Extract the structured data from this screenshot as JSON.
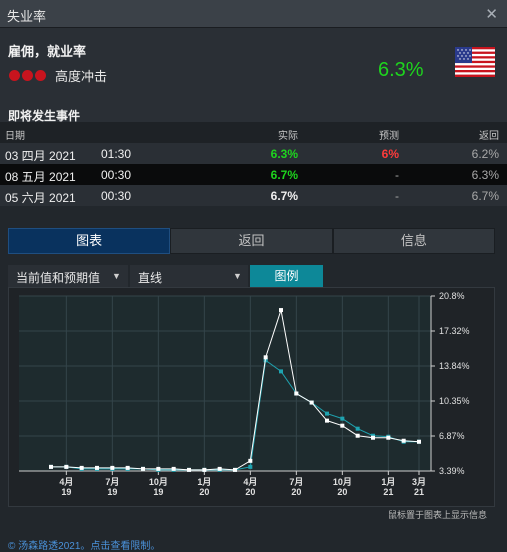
{
  "window": {
    "title": "失业率"
  },
  "indicator": {
    "name": "雇佣，就业率",
    "impact_label": "高度冲击",
    "impact_level": 3,
    "impact_color": "#c8141e",
    "current_value": "6.3%",
    "value_color": "#1ed41e",
    "flag_icon": "us-flag-icon"
  },
  "events": {
    "title": "即将发生事件",
    "headers": {
      "date": "日期",
      "actual": "实际",
      "forecast": "预测",
      "previous": "返回"
    },
    "rows": [
      {
        "date": "03 四月 2021",
        "time": "01:30",
        "actual": "6.3%",
        "forecast": "6%",
        "previous": "6.2%"
      },
      {
        "date": "08 五月 2021",
        "time": "00:30",
        "actual": "6.7%",
        "forecast": "-",
        "previous": "6.3%"
      },
      {
        "date": "05 六月 2021",
        "time": "00:30",
        "actual": "6.7%",
        "forecast": "-",
        "previous": "6.7%"
      }
    ]
  },
  "tabs": [
    {
      "label": "图表",
      "active": true
    },
    {
      "label": "返回",
      "active": false
    },
    {
      "label": "信息",
      "active": false
    }
  ],
  "controls": {
    "series_select": "当前值和预期值",
    "chart_type_select": "直线",
    "legend_button": "图例"
  },
  "chart_data": {
    "type": "line",
    "ylim": [
      3.39,
      20.8
    ],
    "y_ticks": [
      "20.8%",
      "17.32%",
      "13.84%",
      "10.35%",
      "6.87%",
      "3.39%"
    ],
    "x_ticks": [
      {
        "month": "4月",
        "year": "19"
      },
      {
        "month": "7月",
        "year": "19"
      },
      {
        "month": "10月",
        "year": "19"
      },
      {
        "month": "1月",
        "year": "20"
      },
      {
        "month": "4月",
        "year": "20"
      },
      {
        "month": "7月",
        "year": "20"
      },
      {
        "month": "10月",
        "year": "20"
      },
      {
        "month": "1月",
        "year": "21"
      },
      {
        "month": "3月",
        "year": "21"
      }
    ],
    "x_start": "2019-03",
    "x_end": "2021-03",
    "series": [
      {
        "color": "#ffffff",
        "values": [
          3.8,
          3.8,
          3.7,
          3.7,
          3.7,
          3.7,
          3.6,
          3.6,
          3.6,
          3.5,
          3.5,
          3.6,
          3.5,
          4.4,
          14.7,
          19.4,
          11.1,
          10.2,
          8.4,
          7.9,
          6.9,
          6.7,
          6.7,
          6.4,
          6.3
        ]
      },
      {
        "color": "#1fa3b0",
        "values": [
          3.8,
          3.8,
          3.6,
          3.6,
          3.6,
          3.6,
          3.6,
          3.5,
          3.5,
          3.5,
          3.5,
          3.5,
          3.5,
          3.8,
          14.4,
          13.3,
          11.1,
          10.2,
          9.1,
          8.6,
          7.6,
          6.9,
          6.8,
          6.3,
          6.3
        ]
      }
    ],
    "background": "#1e2b2e",
    "grid": true
  },
  "hint": "鼠标置于图表上显示信息",
  "footer": "© 汤森路透2021。点击查看限制。"
}
